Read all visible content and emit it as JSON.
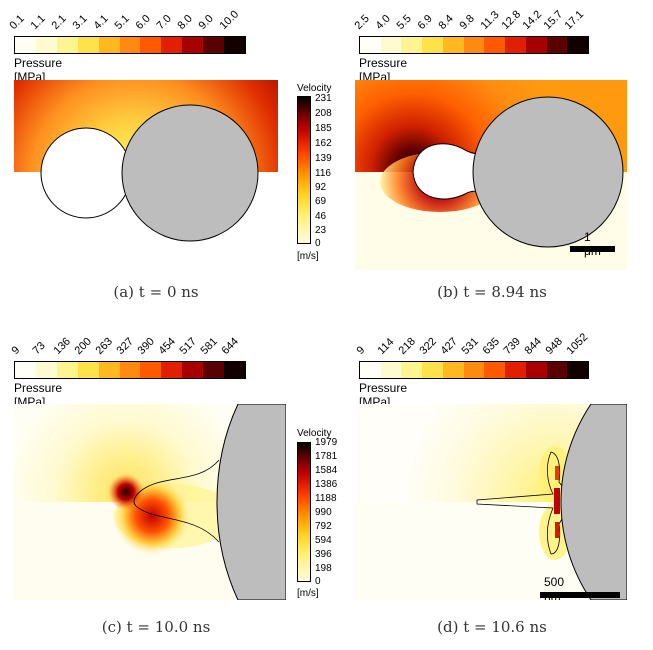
{
  "panels": [
    {
      "pressure_ticks": [
        "0.1",
        "1.1",
        "2.1",
        "3.1",
        "4.1",
        "5.1",
        "6.0",
        "7.0",
        "8.0",
        "9.0",
        "10.0"
      ],
      "pressure_title": "Pressure [MPa]",
      "velocity_title": "Velocity",
      "velocity_ticks": [
        "231",
        "208",
        "185",
        "162",
        "139",
        "116",
        "92",
        "69",
        "46",
        "23",
        "0"
      ],
      "velocity_unit": "[m/s]",
      "caption": "(a) t = 0 ns"
    },
    {
      "pressure_ticks": [
        "2.5",
        "4.0",
        "5.5",
        "6.9",
        "8.4",
        "9.8",
        "11.3",
        "12.8",
        "14.2",
        "15.7",
        "17.1"
      ],
      "pressure_title": "Pressure [MPa]",
      "scale_label": "1 μm",
      "caption": "(b) t = 8.94 ns"
    },
    {
      "pressure_ticks": [
        "9",
        "73",
        "136",
        "200",
        "263",
        "327",
        "390",
        "454",
        "517",
        "581",
        "644"
      ],
      "pressure_title": "Pressure [MPa]",
      "velocity_title": "Velocity",
      "velocity_ticks": [
        "1979",
        "1781",
        "1584",
        "1386",
        "1188",
        "990",
        "792",
        "594",
        "396",
        "198",
        "0"
      ],
      "velocity_unit": "[m/s]",
      "caption": "(c) t = 10.0 ns"
    },
    {
      "pressure_ticks": [
        "9",
        "114",
        "218",
        "322",
        "427",
        "531",
        "635",
        "739",
        "844",
        "948",
        "1052"
      ],
      "pressure_title": "Pressure [MPa]",
      "scale_label": "500 nm",
      "caption": "(d) t = 10.6 ns"
    }
  ]
}
